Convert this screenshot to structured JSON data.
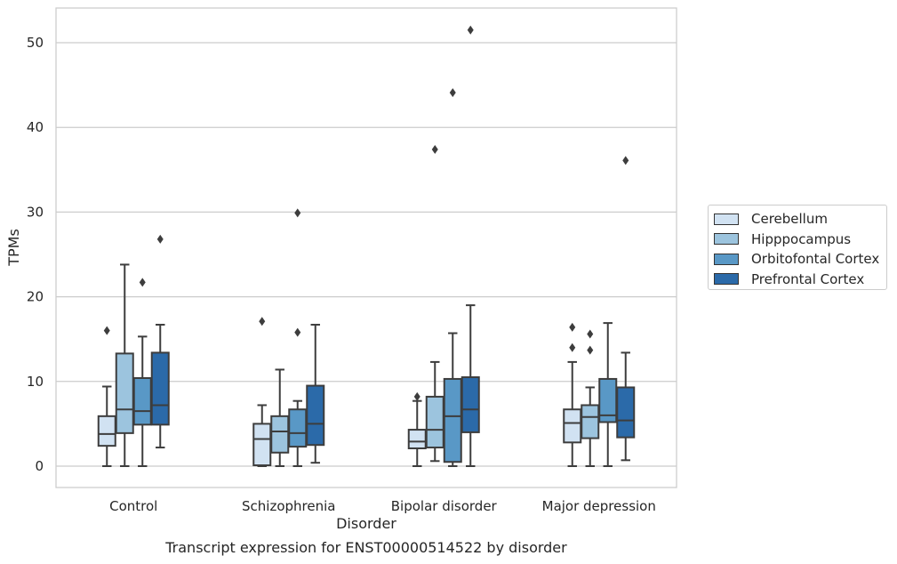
{
  "chart_data": {
    "type": "boxplot",
    "caption": "Transcript expression for ENST00000514522 by disorder",
    "xlabel": "Disorder",
    "ylabel": "TPMs",
    "ylim": [
      -2.5,
      54
    ],
    "yticks": [
      0,
      10,
      20,
      30,
      40,
      50
    ],
    "grid": "horizontal",
    "legend_position": "right",
    "categories": [
      "Control",
      "Schizophrenia",
      "Bipolar disorder",
      "Major depression"
    ],
    "series": [
      {
        "name": "Cerebellum",
        "color": "#d1e2f2",
        "boxes": [
          {
            "whisker_low": 0,
            "q1": 2.4,
            "median": 3.8,
            "q3": 5.9,
            "whisker_high": 9.4,
            "outliers": [
              16.0
            ]
          },
          {
            "whisker_low": 0,
            "q1": 0.1,
            "median": 3.2,
            "q3": 5.0,
            "whisker_high": 7.2,
            "outliers": [
              17.1
            ]
          },
          {
            "whisker_low": 0,
            "q1": 2.1,
            "median": 2.9,
            "q3": 4.3,
            "whisker_high": 7.7,
            "outliers": [
              8.2
            ]
          },
          {
            "whisker_low": 0,
            "q1": 2.8,
            "median": 5.1,
            "q3": 6.7,
            "whisker_high": 12.3,
            "outliers": [
              14.0,
              16.4
            ]
          }
        ]
      },
      {
        "name": "Hipppocampus",
        "color": "#9cc4de",
        "boxes": [
          {
            "whisker_low": 0,
            "q1": 3.9,
            "median": 6.7,
            "q3": 13.3,
            "whisker_high": 23.8,
            "outliers": []
          },
          {
            "whisker_low": 0,
            "q1": 1.6,
            "median": 4.1,
            "q3": 5.9,
            "whisker_high": 11.4,
            "outliers": []
          },
          {
            "whisker_low": 0.6,
            "q1": 2.2,
            "median": 4.3,
            "q3": 8.2,
            "whisker_high": 12.3,
            "outliers": [
              37.4
            ]
          },
          {
            "whisker_low": 0,
            "q1": 3.3,
            "median": 5.8,
            "q3": 7.2,
            "whisker_high": 9.3,
            "outliers": [
              13.7,
              15.6
            ]
          }
        ]
      },
      {
        "name": "Orbitofontal Cortex",
        "color": "#5998c6",
        "boxes": [
          {
            "whisker_low": 0,
            "q1": 4.9,
            "median": 6.5,
            "q3": 10.4,
            "whisker_high": 15.3,
            "outliers": [
              21.7
            ]
          },
          {
            "whisker_low": 0,
            "q1": 2.3,
            "median": 3.9,
            "q3": 6.7,
            "whisker_high": 7.7,
            "outliers": [
              15.8,
              29.9
            ]
          },
          {
            "whisker_low": 0,
            "q1": 0.5,
            "median": 5.9,
            "q3": 10.3,
            "whisker_high": 15.7,
            "outliers": [
              44.1
            ]
          },
          {
            "whisker_low": 0,
            "q1": 5.2,
            "median": 6.0,
            "q3": 10.3,
            "whisker_high": 16.9,
            "outliers": []
          }
        ]
      },
      {
        "name": "Prefrontal Cortex",
        "color": "#2b6aa9",
        "boxes": [
          {
            "whisker_low": 2.2,
            "q1": 4.9,
            "median": 7.2,
            "q3": 13.4,
            "whisker_high": 16.7,
            "outliers": [
              26.8
            ]
          },
          {
            "whisker_low": 0.4,
            "q1": 2.5,
            "median": 5.0,
            "q3": 9.5,
            "whisker_high": 16.7,
            "outliers": []
          },
          {
            "whisker_low": 0,
            "q1": 4.0,
            "median": 6.7,
            "q3": 10.5,
            "whisker_high": 19.0,
            "outliers": [
              51.5
            ]
          },
          {
            "whisker_low": 0.7,
            "q1": 3.4,
            "median": 5.4,
            "q3": 9.3,
            "whisker_high": 13.4,
            "outliers": [
              36.1
            ]
          }
        ]
      }
    ]
  }
}
